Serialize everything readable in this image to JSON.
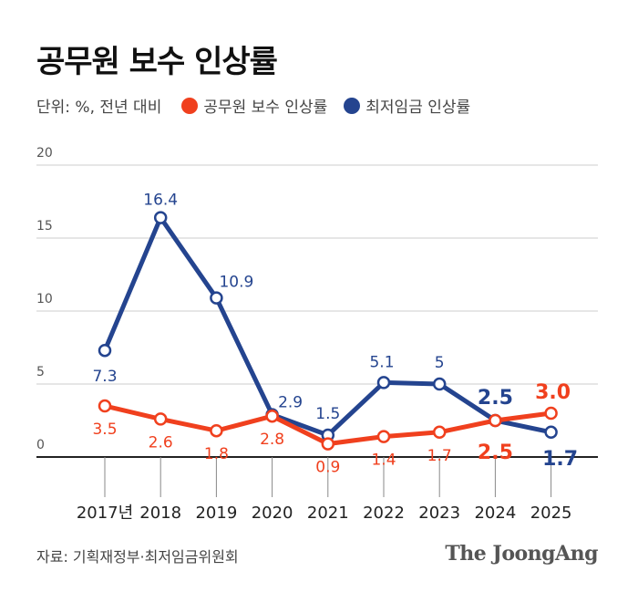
{
  "title": "공무원 보수 인상률",
  "unit_label": "단위: %, 전년 대비",
  "source": "자료: 기획재정부·최저임금위원회",
  "brand": "The JoongAng",
  "colors": {
    "series_public": "#f0401e",
    "series_minwage": "#24448f",
    "grid": "#cccccc",
    "axis": "#222222"
  },
  "chart_data": {
    "type": "line",
    "title": "공무원 보수 인상률",
    "xlabel": "",
    "ylabel": "",
    "ylim": [
      0,
      20
    ],
    "yticks": [
      "0",
      "5",
      "10",
      "15",
      "20"
    ],
    "grid": true,
    "legend_position": "top-left",
    "categories": [
      "2017년",
      "2018",
      "2019",
      "2020",
      "2021",
      "2022",
      "2023",
      "2024",
      "2025"
    ],
    "series": [
      {
        "name": "공무원 보수 인상률",
        "color": "#f0401e",
        "values": [
          3.5,
          2.6,
          1.8,
          2.8,
          0.9,
          1.4,
          1.7,
          2.5,
          3.0
        ],
        "labels": [
          "3.5",
          "2.6",
          "1.8",
          "2.8",
          "0.9",
          "1.4",
          "1.7",
          "2.5",
          "3.0"
        ]
      },
      {
        "name": "최저임금 인상률",
        "color": "#24448f",
        "values": [
          7.3,
          16.4,
          10.9,
          2.9,
          1.5,
          5.1,
          5.0,
          2.5,
          1.7
        ],
        "labels": [
          "7.3",
          "16.4",
          "10.9",
          "2.9",
          "1.5",
          "5.1",
          "5",
          "2.5",
          "1.7"
        ]
      }
    ]
  }
}
